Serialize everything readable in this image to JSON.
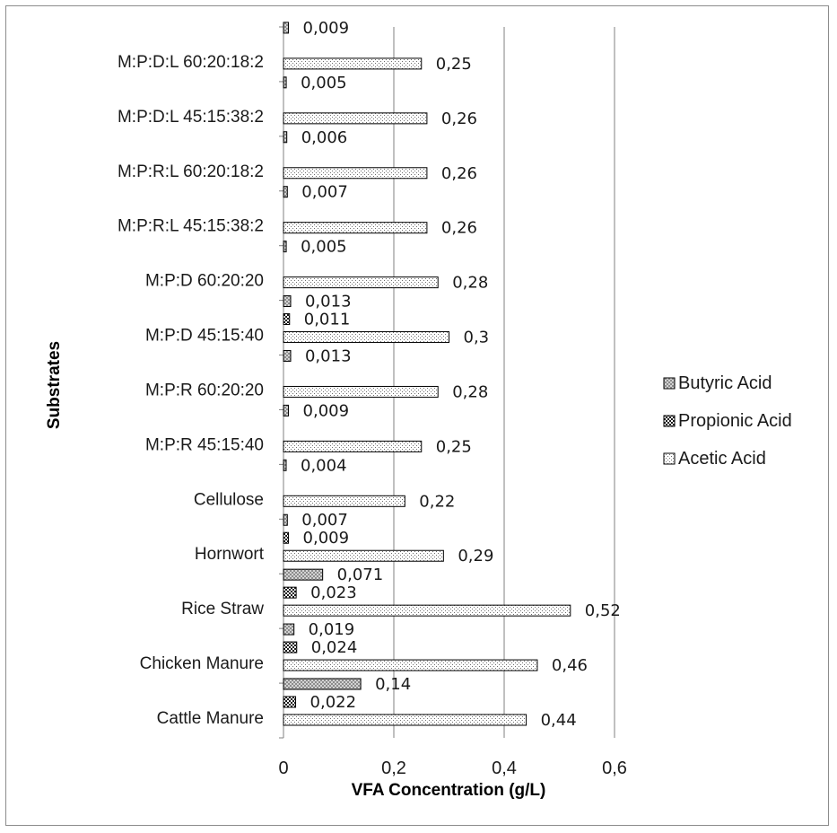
{
  "chart_data": {
    "type": "bar",
    "orientation": "horizontal",
    "title": "",
    "xlabel": "VFA Concentration (g/L)",
    "ylabel": "Substrates",
    "xlim": [
      0,
      0.6
    ],
    "xticks": [
      "0",
      "0,2",
      "0,4",
      "0,6"
    ],
    "grid": "vertical",
    "legend_position": "right",
    "categories": [
      "Cattle Manure",
      "Chicken Manure",
      "Rice Straw",
      "Hornwort",
      "Cellulose",
      "M:P:R 45:15:40",
      "M:P:R 60:20:20",
      "M:P:D 45:15:40",
      "M:P:D 60:20:20",
      "M:P:R:L 45:15:38:2",
      "M:P:R:L 60:20:18:2",
      "M:P:D:L 45:15:38:2",
      "M:P:D:L 60:20:18:2"
    ],
    "series": [
      {
        "name": "Acetic Acid",
        "pattern": "light-dots",
        "values": [
          0.44,
          0.46,
          0.52,
          0.29,
          0.22,
          0.25,
          0.28,
          0.3,
          0.28,
          0.26,
          0.26,
          0.26,
          0.25
        ],
        "labels": [
          "0,44",
          "0,46",
          "0,52",
          "0,29",
          "0,22",
          "0,25",
          "0,28",
          "0,3",
          "0,28",
          "0,26",
          "0,26",
          "0,26",
          "0,25"
        ]
      },
      {
        "name": "Propionic Acid",
        "pattern": "dark-checker",
        "values": [
          0.022,
          0.024,
          0.023,
          0.009,
          null,
          null,
          null,
          0.011,
          null,
          null,
          null,
          null,
          null
        ],
        "labels": [
          "0,022",
          "0,024",
          "0,023",
          "0,009",
          "",
          "",
          "",
          "0,011",
          "",
          "",
          "",
          "",
          ""
        ]
      },
      {
        "name": "Butyric Acid",
        "pattern": "grey-crosshatch",
        "values": [
          0.14,
          0.019,
          0.071,
          0.007,
          0.004,
          0.009,
          0.013,
          0.013,
          0.005,
          0.007,
          0.006,
          0.005,
          0.009
        ],
        "labels": [
          "0,14",
          "0,019",
          "0,071",
          "0,007",
          "0,004",
          "0,009",
          "0,013",
          "0,013",
          "0,005",
          "0,007",
          "0,006",
          "0,005",
          "0,009"
        ]
      }
    ],
    "legend_order": [
      "Butyric Acid",
      "Propionic Acid",
      "Acetic Acid"
    ]
  }
}
